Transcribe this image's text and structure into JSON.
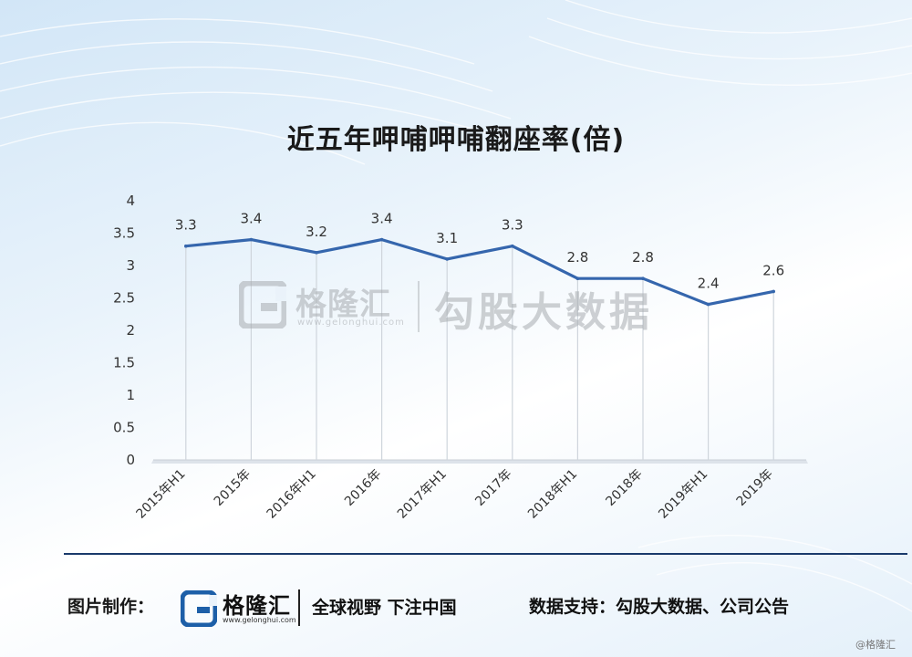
{
  "chart_data": {
    "type": "line",
    "title": "近五年呷哺呷哺翻座率(倍)",
    "categories": [
      "2015年H1",
      "2015年",
      "2016年H1",
      "2016年",
      "2017年H1",
      "2017年",
      "2018年H1",
      "2018年",
      "2019年H1",
      "2019年"
    ],
    "series": [
      {
        "values": [
          3.3,
          3.4,
          3.2,
          3.4,
          3.1,
          3.3,
          2.8,
          2.8,
          2.4,
          2.6
        ]
      }
    ],
    "value_labels": [
      "3.3",
      "3.4",
      "3.2",
      "3.4",
      "3.1",
      "3.3",
      "2.8",
      "2.8",
      "2.4",
      "2.6"
    ],
    "ylim": [
      0,
      4
    ],
    "yticks": [
      0,
      0.5,
      1,
      1.5,
      2,
      2.5,
      3,
      3.5,
      4
    ],
    "ytick_labels": [
      "0",
      "0.5",
      "1",
      "1.5",
      "2",
      "2.5",
      "3",
      "3.5",
      "4"
    ],
    "xlabel": "",
    "ylabel": "",
    "grid": "vertical",
    "legend": "none",
    "line_color": "#3566ad"
  },
  "watermark": {
    "name": "格隆汇",
    "url": "www.gelonghui.com",
    "brand": "勾股大数据"
  },
  "footer": {
    "label": "图片制作：",
    "logo_name": "格隆汇",
    "logo_url": "www.gelonghui.com",
    "slogan": "全球视野 下注中国",
    "source": "数据支持：勾股大数据、公司公告",
    "corner_tag": "@格隆汇"
  },
  "colors": {
    "title": "#1a1a1a",
    "footer_rule": "#1a3a6b",
    "logo_blue": "#1d5fa8"
  }
}
